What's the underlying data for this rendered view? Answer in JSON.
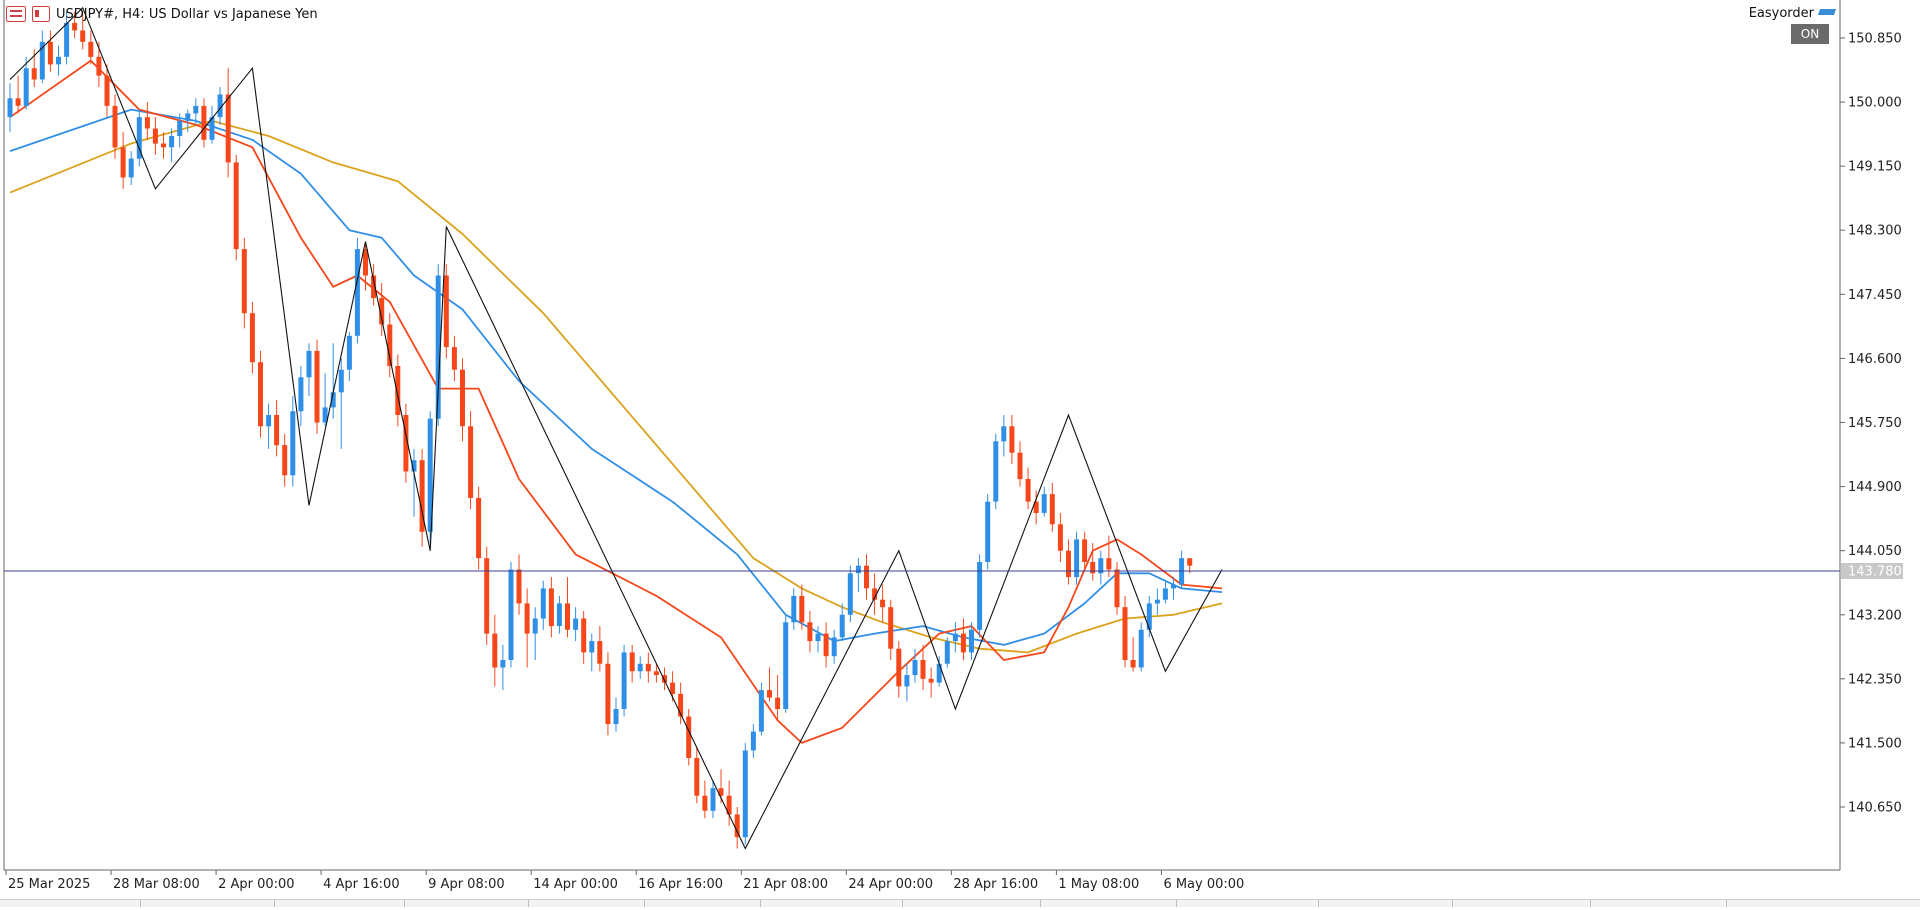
{
  "header": {
    "title": "USDJPY#, H4:  US Dollar vs Japanese Yen",
    "easyorder_label": "Easyorder",
    "on_badge": "ON"
  },
  "chart_data": {
    "type": "candlestick",
    "symbol": "USDJPY#",
    "timeframe": "H4",
    "ylim": [
      139.78,
      151.07
    ],
    "y_ticks": [
      "150.850",
      "150.000",
      "149.150",
      "148.300",
      "147.450",
      "146.600",
      "145.750",
      "144.900",
      "144.050",
      "143.200",
      "142.350",
      "141.500",
      "140.650"
    ],
    "x_ticks": [
      "25 Mar 2025",
      "28 Mar 08:00",
      "2 Apr 00:00",
      "4 Apr 16:00",
      "9 Apr 08:00",
      "14 Apr 00:00",
      "16 Apr 16:00",
      "21 Apr 08:00",
      "24 Apr 00:00",
      "28 Apr 16:00",
      "1 May 08:00",
      "6 May 00:00"
    ],
    "current_price": "143.780",
    "colors": {
      "bull": "#2f8fe6",
      "bear": "#f5471a",
      "ma_fast": "#f5471a",
      "ma_mid": "#2f8fe6",
      "ma_slow": "#dba21c",
      "zigzag": "#111111",
      "price_line": "#3c3c9a"
    },
    "candles": [
      [
        149.8,
        150.25,
        149.6,
        150.05
      ],
      [
        150.05,
        150.35,
        149.85,
        149.95
      ],
      [
        149.95,
        150.6,
        149.9,
        150.45
      ],
      [
        150.45,
        150.7,
        150.2,
        150.3
      ],
      [
        150.3,
        150.95,
        150.25,
        150.8
      ],
      [
        150.8,
        150.95,
        150.4,
        150.5
      ],
      [
        150.5,
        150.75,
        150.35,
        150.6
      ],
      [
        150.6,
        151.2,
        150.5,
        151.05
      ],
      [
        151.05,
        151.2,
        150.85,
        150.95
      ],
      [
        150.95,
        151.2,
        150.7,
        150.8
      ],
      [
        150.8,
        150.95,
        150.5,
        150.6
      ],
      [
        150.6,
        150.8,
        150.2,
        150.35
      ],
      [
        150.35,
        150.5,
        149.8,
        149.95
      ],
      [
        149.95,
        150.1,
        149.25,
        149.4
      ],
      [
        149.4,
        149.6,
        148.85,
        149.0
      ],
      [
        149.0,
        149.35,
        148.9,
        149.25
      ],
      [
        149.25,
        149.9,
        149.15,
        149.8
      ],
      [
        149.8,
        150.0,
        149.5,
        149.65
      ],
      [
        149.65,
        149.8,
        149.3,
        149.45
      ],
      [
        149.45,
        149.6,
        149.25,
        149.4
      ],
      [
        149.4,
        149.65,
        149.2,
        149.55
      ],
      [
        149.55,
        149.85,
        149.4,
        149.75
      ],
      [
        149.75,
        149.9,
        149.6,
        149.85
      ],
      [
        149.85,
        150.05,
        149.7,
        149.95
      ],
      [
        149.95,
        150.05,
        149.4,
        149.5
      ],
      [
        149.5,
        149.95,
        149.45,
        149.8
      ],
      [
        149.8,
        150.2,
        149.7,
        150.1
      ],
      [
        150.1,
        150.45,
        149.0,
        149.2
      ],
      [
        149.2,
        149.3,
        147.9,
        148.05
      ],
      [
        148.05,
        148.2,
        147.0,
        147.2
      ],
      [
        147.2,
        147.35,
        146.4,
        146.55
      ],
      [
        146.55,
        146.7,
        145.55,
        145.7
      ],
      [
        145.7,
        146.0,
        145.4,
        145.85
      ],
      [
        145.85,
        146.05,
        145.3,
        145.45
      ],
      [
        145.45,
        145.6,
        144.9,
        145.05
      ],
      [
        145.05,
        146.1,
        144.9,
        145.9
      ],
      [
        145.9,
        146.5,
        145.7,
        146.35
      ],
      [
        146.35,
        146.8,
        146.1,
        146.7
      ],
      [
        146.7,
        146.85,
        145.6,
        145.75
      ],
      [
        145.75,
        146.4,
        145.7,
        145.95
      ],
      [
        145.95,
        146.8,
        145.8,
        146.15
      ],
      [
        146.15,
        146.6,
        145.4,
        146.45
      ],
      [
        146.45,
        146.95,
        146.3,
        146.9
      ],
      [
        146.9,
        148.2,
        146.8,
        148.05
      ],
      [
        148.05,
        148.15,
        147.5,
        147.7
      ],
      [
        147.7,
        147.85,
        147.3,
        147.4
      ],
      [
        147.4,
        147.6,
        146.9,
        147.05
      ],
      [
        147.05,
        147.2,
        146.35,
        146.5
      ],
      [
        146.5,
        146.65,
        145.7,
        145.85
      ],
      [
        145.85,
        146.0,
        144.95,
        145.1
      ],
      [
        145.1,
        145.4,
        144.5,
        145.25
      ],
      [
        145.25,
        145.4,
        144.1,
        144.3
      ],
      [
        144.3,
        145.9,
        144.15,
        145.8
      ],
      [
        145.8,
        147.85,
        145.7,
        147.7
      ],
      [
        147.7,
        147.85,
        146.6,
        146.75
      ],
      [
        146.75,
        146.9,
        146.3,
        146.45
      ],
      [
        146.45,
        146.6,
        145.5,
        145.7
      ],
      [
        145.7,
        145.9,
        144.6,
        144.75
      ],
      [
        144.75,
        144.9,
        143.8,
        143.95
      ],
      [
        143.95,
        144.1,
        142.8,
        142.95
      ],
      [
        142.95,
        143.2,
        142.25,
        142.5
      ],
      [
        142.5,
        142.8,
        142.2,
        142.6
      ],
      [
        142.6,
        143.9,
        142.5,
        143.8
      ],
      [
        143.8,
        144.0,
        143.2,
        143.35
      ],
      [
        143.35,
        143.55,
        142.5,
        142.95
      ],
      [
        142.95,
        143.3,
        142.6,
        143.15
      ],
      [
        143.15,
        143.65,
        143.0,
        143.55
      ],
      [
        143.55,
        143.7,
        142.9,
        143.05
      ],
      [
        143.05,
        143.45,
        142.95,
        143.35
      ],
      [
        143.35,
        143.7,
        142.9,
        143.0
      ],
      [
        143.0,
        143.3,
        142.85,
        143.15
      ],
      [
        143.15,
        143.25,
        142.55,
        142.7
      ],
      [
        142.7,
        142.95,
        142.45,
        142.85
      ],
      [
        142.85,
        143.05,
        142.45,
        142.55
      ],
      [
        142.55,
        142.7,
        141.6,
        141.75
      ],
      [
        141.75,
        142.1,
        141.65,
        141.95
      ],
      [
        141.95,
        142.8,
        141.85,
        142.7
      ],
      [
        142.7,
        142.8,
        142.3,
        142.45
      ],
      [
        142.45,
        142.65,
        142.35,
        142.55
      ],
      [
        142.55,
        142.7,
        142.3,
        142.45
      ],
      [
        142.45,
        142.55,
        142.3,
        142.4
      ],
      [
        142.4,
        142.5,
        142.2,
        142.3
      ],
      [
        142.3,
        142.45,
        142.05,
        142.15
      ],
      [
        142.15,
        142.3,
        141.75,
        141.85
      ],
      [
        141.85,
        141.95,
        141.2,
        141.3
      ],
      [
        141.3,
        141.45,
        140.7,
        140.8
      ],
      [
        140.8,
        141.0,
        140.5,
        140.6
      ],
      [
        140.6,
        141.0,
        140.5,
        140.9
      ],
      [
        140.9,
        141.15,
        140.7,
        140.8
      ],
      [
        140.8,
        141.0,
        140.4,
        140.55
      ],
      [
        140.55,
        140.65,
        140.1,
        140.25
      ],
      [
        140.25,
        141.5,
        140.15,
        141.4
      ],
      [
        141.4,
        141.75,
        141.3,
        141.65
      ],
      [
        141.65,
        142.3,
        141.6,
        142.2
      ],
      [
        142.2,
        142.5,
        142.05,
        142.1
      ],
      [
        142.1,
        142.4,
        141.8,
        141.95
      ],
      [
        141.95,
        143.2,
        141.9,
        143.1
      ],
      [
        143.1,
        143.55,
        143.0,
        143.45
      ],
      [
        143.45,
        143.6,
        143.0,
        143.1
      ],
      [
        143.1,
        143.25,
        142.7,
        142.85
      ],
      [
        142.85,
        143.05,
        142.7,
        142.95
      ],
      [
        142.95,
        143.1,
        142.5,
        142.65
      ],
      [
        142.65,
        143.0,
        142.55,
        142.9
      ],
      [
        142.9,
        143.35,
        142.85,
        143.2
      ],
      [
        143.2,
        143.85,
        143.1,
        143.75
      ],
      [
        143.75,
        143.95,
        143.5,
        143.85
      ],
      [
        143.85,
        144.0,
        143.4,
        143.55
      ],
      [
        143.55,
        143.75,
        143.2,
        143.4
      ],
      [
        143.4,
        143.6,
        143.1,
        143.3
      ],
      [
        143.3,
        143.4,
        142.6,
        142.75
      ],
      [
        142.75,
        142.85,
        142.1,
        142.25
      ],
      [
        142.25,
        142.55,
        142.05,
        142.4
      ],
      [
        142.4,
        142.75,
        142.3,
        142.6
      ],
      [
        142.6,
        142.8,
        142.2,
        142.35
      ],
      [
        142.35,
        142.5,
        142.1,
        142.3
      ],
      [
        142.3,
        142.65,
        142.25,
        142.55
      ],
      [
        142.55,
        142.9,
        142.5,
        142.85
      ],
      [
        142.85,
        143.1,
        142.7,
        142.95
      ],
      [
        142.95,
        143.15,
        142.6,
        142.7
      ],
      [
        142.7,
        143.1,
        142.6,
        143.0
      ],
      [
        143.0,
        144.0,
        142.9,
        143.9
      ],
      [
        143.9,
        144.8,
        143.8,
        144.7
      ],
      [
        144.7,
        145.6,
        144.6,
        145.5
      ],
      [
        145.5,
        145.85,
        145.3,
        145.7
      ],
      [
        145.7,
        145.85,
        145.2,
        145.35
      ],
      [
        145.35,
        145.5,
        144.9,
        145.0
      ],
      [
        145.0,
        145.15,
        144.6,
        144.7
      ],
      [
        144.7,
        144.85,
        144.4,
        144.55
      ],
      [
        144.55,
        144.9,
        144.5,
        144.8
      ],
      [
        144.8,
        144.95,
        144.3,
        144.4
      ],
      [
        144.4,
        144.55,
        143.9,
        144.05
      ],
      [
        144.05,
        144.2,
        143.6,
        143.7
      ],
      [
        143.7,
        144.3,
        143.6,
        144.2
      ],
      [
        144.2,
        144.3,
        143.8,
        143.9
      ],
      [
        143.9,
        144.15,
        143.65,
        143.75
      ],
      [
        143.75,
        144.05,
        143.6,
        143.95
      ],
      [
        143.95,
        144.25,
        143.7,
        143.8
      ],
      [
        143.8,
        143.9,
        143.2,
        143.3
      ],
      [
        143.3,
        143.45,
        142.5,
        142.6
      ],
      [
        142.6,
        142.9,
        142.45,
        142.5
      ],
      [
        142.5,
        143.1,
        142.45,
        143.0
      ],
      [
        143.0,
        143.45,
        142.9,
        143.35
      ],
      [
        143.35,
        143.55,
        143.2,
        143.4
      ],
      [
        143.4,
        143.65,
        143.35,
        143.55
      ],
      [
        143.55,
        143.7,
        143.4,
        143.6
      ],
      [
        143.6,
        144.05,
        143.55,
        143.95
      ],
      [
        143.95,
        143.95,
        143.75,
        143.85
      ]
    ],
    "zigzag": [
      [
        0,
        150.3
      ],
      [
        9,
        151.25
      ],
      [
        18,
        148.85
      ],
      [
        30,
        150.45
      ],
      [
        37,
        144.65
      ],
      [
        44,
        148.15
      ],
      [
        52,
        144.05
      ],
      [
        54,
        148.35
      ],
      [
        91,
        140.1
      ],
      [
        110,
        144.05
      ],
      [
        117,
        141.95
      ],
      [
        131,
        145.85
      ],
      [
        143,
        142.45
      ],
      [
        150,
        143.8
      ]
    ],
    "ma_fast": [
      [
        0,
        149.8
      ],
      [
        10,
        150.55
      ],
      [
        16,
        149.9
      ],
      [
        23,
        149.7
      ],
      [
        30,
        149.4
      ],
      [
        36,
        148.2
      ],
      [
        40,
        147.55
      ],
      [
        43,
        147.7
      ],
      [
        47,
        147.35
      ],
      [
        53,
        146.2
      ],
      [
        58,
        146.2
      ],
      [
        63,
        145.0
      ],
      [
        70,
        144.0
      ],
      [
        80,
        143.45
      ],
      [
        88,
        142.9
      ],
      [
        95,
        141.8
      ],
      [
        98,
        141.5
      ],
      [
        103,
        141.7
      ],
      [
        110,
        142.45
      ],
      [
        115,
        142.95
      ],
      [
        119,
        143.05
      ],
      [
        123,
        142.6
      ],
      [
        128,
        142.7
      ],
      [
        131,
        143.3
      ],
      [
        134,
        144.05
      ],
      [
        137,
        144.2
      ],
      [
        140,
        144.0
      ],
      [
        145,
        143.6
      ],
      [
        150,
        143.55
      ]
    ],
    "ma_mid": [
      [
        0,
        149.35
      ],
      [
        15,
        149.9
      ],
      [
        23,
        149.75
      ],
      [
        30,
        149.5
      ],
      [
        36,
        149.05
      ],
      [
        42,
        148.3
      ],
      [
        46,
        148.2
      ],
      [
        50,
        147.7
      ],
      [
        56,
        147.25
      ],
      [
        63,
        146.3
      ],
      [
        72,
        145.4
      ],
      [
        82,
        144.7
      ],
      [
        90,
        144.0
      ],
      [
        96,
        143.2
      ],
      [
        102,
        142.85
      ],
      [
        107,
        142.95
      ],
      [
        113,
        143.05
      ],
      [
        118,
        142.9
      ],
      [
        123,
        142.8
      ],
      [
        128,
        142.95
      ],
      [
        133,
        143.35
      ],
      [
        137,
        143.75
      ],
      [
        141,
        143.75
      ],
      [
        145,
        143.55
      ],
      [
        150,
        143.5
      ]
    ],
    "ma_slow": [
      [
        0,
        148.8
      ],
      [
        15,
        149.45
      ],
      [
        25,
        149.75
      ],
      [
        32,
        149.55
      ],
      [
        40,
        149.2
      ],
      [
        48,
        148.95
      ],
      [
        56,
        148.25
      ],
      [
        66,
        147.2
      ],
      [
        76,
        145.95
      ],
      [
        86,
        144.7
      ],
      [
        92,
        143.95
      ],
      [
        98,
        143.55
      ],
      [
        103,
        143.3
      ],
      [
        108,
        143.1
      ],
      [
        114,
        142.9
      ],
      [
        120,
        142.75
      ],
      [
        126,
        142.7
      ],
      [
        132,
        142.95
      ],
      [
        138,
        143.15
      ],
      [
        144,
        143.2
      ],
      [
        150,
        143.35
      ]
    ]
  }
}
